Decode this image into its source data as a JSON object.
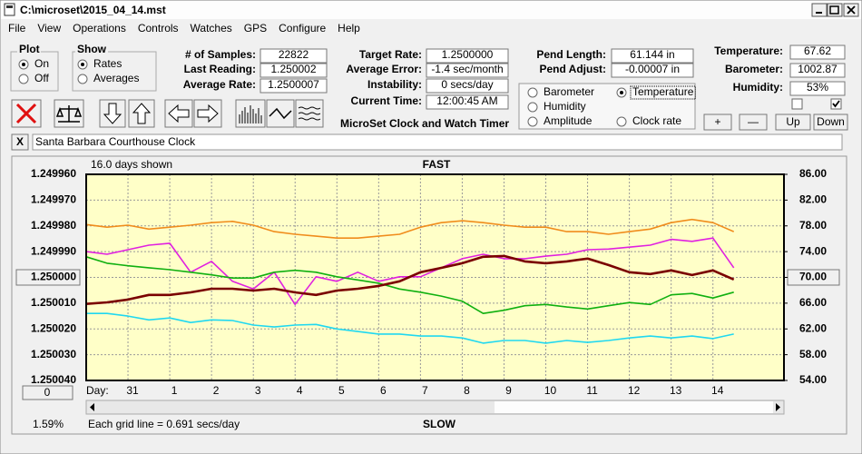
{
  "window": {
    "title": "C:\\microset\\2015_04_14.mst",
    "menu": [
      "File",
      "View",
      "Operations",
      "Controls",
      "Watches",
      "GPS",
      "Configure",
      "Help"
    ]
  },
  "plot": {
    "title": "Plot",
    "options": [
      "On",
      "Off"
    ],
    "selected": 0
  },
  "show": {
    "title": "Show",
    "options": [
      "Rates",
      "Averages"
    ],
    "selected": 0
  },
  "fields": [
    {
      "label": "# of Samples:",
      "value": "22822"
    },
    {
      "label": "Last Reading:",
      "value": "1.250002"
    },
    {
      "label": "Average Rate:",
      "value": "1.2500007"
    },
    {
      "label": "Target Rate:",
      "value": "1.2500000"
    },
    {
      "label": "Average Error:",
      "value": "-1.4 sec/month"
    },
    {
      "label": "Instability:",
      "value": "0 secs/day"
    },
    {
      "label": "Current Time:",
      "value": "12:00:45 AM"
    },
    {
      "label": "Pend Length:",
      "value": "61.144 in"
    },
    {
      "label": "Pend Adjust:",
      "value": "-0.00007 in"
    },
    {
      "label": "Temperature:",
      "value": "67.62"
    },
    {
      "label": "Barometer:",
      "value": "1002.87"
    },
    {
      "label": "Humidity:",
      "value": "53%"
    }
  ],
  "graph_selected": 1,
  "checkboxes": [
    {
      "checked": false
    },
    {
      "checked": true
    }
  ],
  "buttons": [
    "+",
    "—",
    "Up",
    "Down"
  ],
  "app_name": "MicroSet Clock and Watch Timer",
  "clear_button": "X",
  "clock_name": "Santa Barbara Courthouse Clock",
  "chart_data": {
    "type": "line",
    "days_shown": "16.0 days shown",
    "top_label": "FAST",
    "bottom_label": "SLOW",
    "x_label": "Day:",
    "offset_button": "0",
    "status": "1.59%",
    "grid_note": "Each grid line = 0.691 secs/day",
    "grid": true,
    "xlim": [
      -1,
      15.7
    ],
    "xticks": [
      {
        "value": 0,
        "label": "31"
      },
      1,
      2,
      3,
      4,
      5,
      6,
      7,
      8,
      9,
      10,
      11,
      12,
      13,
      14
    ],
    "ylim": [
      1.25004,
      1.24996
    ],
    "yticks": [
      {
        "value": 1.24996,
        "label": "1.249960"
      },
      {
        "value": 1.24997,
        "label": "1.249970"
      },
      {
        "value": 1.24998,
        "label": "1.249980"
      },
      {
        "value": 1.24999,
        "label": "1.249990"
      },
      {
        "value": 1.25,
        "label": "1.250000"
      },
      {
        "value": 1.25001,
        "label": "1.250010"
      },
      {
        "value": 1.25002,
        "label": "1.250020"
      },
      {
        "value": 1.25003,
        "label": "1.250030"
      },
      {
        "value": 1.25004,
        "label": "1.250040"
      }
    ],
    "y2lim": [
      54,
      86
    ],
    "y2ticks": [
      {
        "value": 86,
        "label": "86.00"
      },
      {
        "value": 82,
        "label": "82.00"
      },
      {
        "value": 78,
        "label": "78.00"
      },
      {
        "value": 74,
        "label": "74.00"
      },
      {
        "value": 70,
        "label": "70.00"
      },
      {
        "value": 66,
        "label": "66.00"
      },
      {
        "value": 62,
        "label": "62.00"
      },
      {
        "value": 58,
        "label": "58.00"
      },
      {
        "value": 54,
        "label": "54.00"
      }
    ],
    "x": [
      -1,
      -0.5,
      0,
      0.5,
      1,
      1.5,
      2,
      2.5,
      3,
      3.5,
      4,
      4.5,
      5,
      5.5,
      6,
      6.5,
      7,
      7.5,
      8,
      8.5,
      9,
      9.5,
      10,
      10.5,
      11,
      11.5,
      12,
      12.5,
      13,
      13.5,
      14,
      14.5
    ],
    "series": [
      {
        "name": "Clock rate",
        "color": "#7a0000",
        "axis": "y",
        "values": [
          1.2500103,
          1.2500097,
          1.2500086,
          1.2500068,
          1.2500068,
          1.2500058,
          1.2500044,
          1.2500044,
          1.2500051,
          1.2500044,
          1.2500058,
          1.2500068,
          1.2500051,
          1.2500044,
          1.2500033,
          1.2500015,
          1.249998,
          1.2499963,
          1.2499945,
          1.249992,
          1.2499917,
          1.2499938,
          1.2499945,
          1.2499938,
          1.2499927,
          1.2499952,
          1.249998,
          1.2499987,
          1.2499973,
          1.2499991,
          1.2499973,
          1.2500008
        ]
      },
      {
        "name": "Temperature",
        "color": "#10b010",
        "axis": "y2",
        "values": [
          73.2,
          72.2,
          71.8,
          71.5,
          71.2,
          70.8,
          70.4,
          69.9,
          69.9,
          70.8,
          71.1,
          70.8,
          70.1,
          69.6,
          69.1,
          68.2,
          67.7,
          67.1,
          66.3,
          64.4,
          64.9,
          65.6,
          65.8,
          65.4,
          65.1,
          65.6,
          66.1,
          65.8,
          67.3,
          67.5,
          66.8,
          67.7
        ]
      },
      {
        "name": "Barometer",
        "color": "#f08c1c",
        "axis": "y2",
        "values": [
          78.2,
          77.8,
          78.1,
          77.5,
          77.8,
          78.1,
          78.5,
          78.7,
          78.1,
          77.1,
          76.7,
          76.4,
          76.1,
          76.1,
          76.4,
          76.7,
          77.8,
          78.5,
          78.8,
          78.5,
          78.1,
          77.8,
          77.8,
          77.1,
          77.1,
          76.7,
          77.1,
          77.5,
          78.5,
          79.0,
          78.5,
          77.1
        ]
      },
      {
        "name": "Humidity",
        "color": "#e020e0",
        "axis": "y2",
        "values": [
          74.0,
          73.6,
          74.3,
          75.0,
          75.3,
          70.8,
          72.5,
          69.4,
          68.2,
          70.8,
          65.8,
          70.1,
          69.4,
          70.8,
          69.4,
          70.1,
          70.1,
          71.5,
          72.9,
          73.6,
          72.9,
          72.9,
          73.3,
          73.6,
          74.3,
          74.4,
          74.7,
          75.0,
          75.9,
          75.6,
          76.1,
          71.5
        ]
      },
      {
        "name": "Amplitude",
        "color": "#20d8f0",
        "axis": "y2",
        "values": [
          64.4,
          64.4,
          64.0,
          63.4,
          63.7,
          63.0,
          63.4,
          63.3,
          62.6,
          62.3,
          62.6,
          62.7,
          62.0,
          61.6,
          61.2,
          61.2,
          60.9,
          60.9,
          60.6,
          59.8,
          60.2,
          60.2,
          59.8,
          60.2,
          59.9,
          60.2,
          60.6,
          60.9,
          60.6,
          60.9,
          60.5,
          61.2
        ]
      }
    ]
  }
}
